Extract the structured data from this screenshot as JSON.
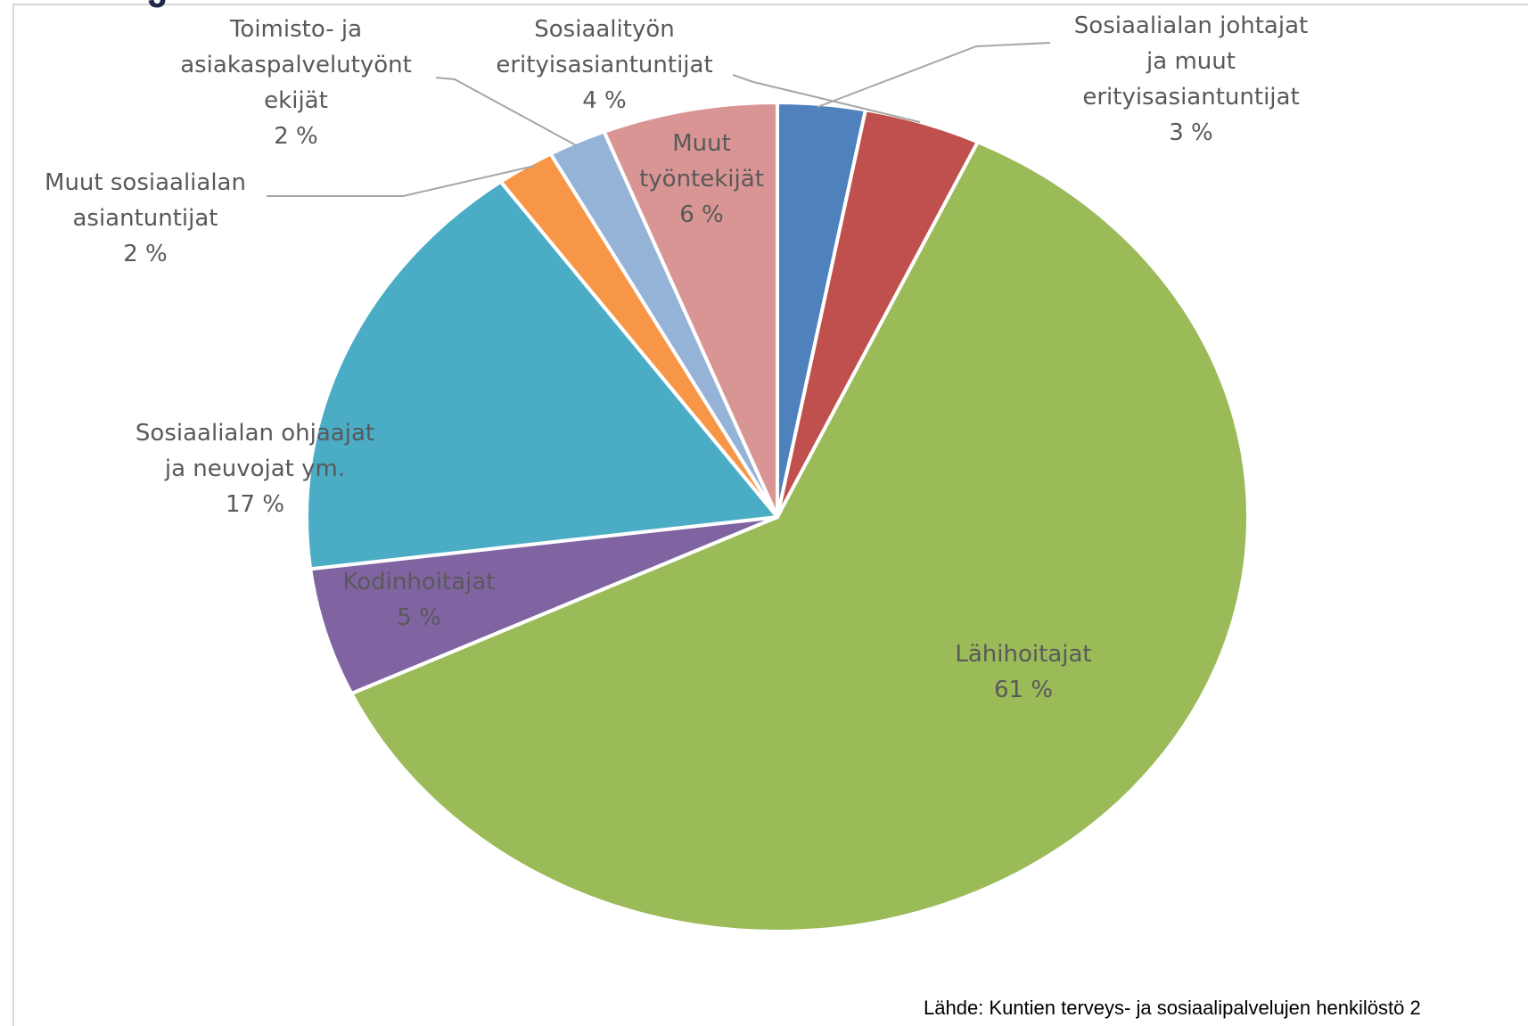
{
  "chart_data": {
    "type": "pie",
    "title": "",
    "start_angle_deg": 0,
    "direction": "clockwise",
    "slices": [
      {
        "label": "Sosiaalialan johtajat ja muut erityisasiantuntijat",
        "label_lines": [
          "Sosiaalialan johtajat",
          "ja muut",
          "erityisasiantuntijat",
          "3 %"
        ],
        "value": 3,
        "percent_text": "3 %",
        "color": "#4f81bd"
      },
      {
        "label": "Sosiaalityön erityisasiantuntijat",
        "label_lines": [
          "Sosiaalityön",
          "erityisasiantuntijat",
          "4 %"
        ],
        "value": 4,
        "percent_text": "4 %",
        "color": "#c0504d"
      },
      {
        "label": "Lähihoitajat",
        "label_lines": [
          "Lähihoitajat",
          "61 %"
        ],
        "value": 61,
        "percent_text": "61 %",
        "color": "#9bbb59"
      },
      {
        "label": "Kodinhoitajat",
        "label_lines": [
          "Kodinhoitajat",
          "5 %"
        ],
        "value": 5,
        "percent_text": "5 %",
        "color": "#8064a2"
      },
      {
        "label": "Sosiaalialan ohjaajat ja neuvojat ym.",
        "label_lines": [
          "Sosiaalialan ohjaajat",
          "ja neuvojat ym.",
          "17 %"
        ],
        "value": 17,
        "percent_text": "17 %",
        "color": "#4bacc6"
      },
      {
        "label": "Muut sosiaalialan asiantuntijat",
        "label_lines": [
          "Muut sosiaalialan",
          "asiantuntijat",
          "2 %"
        ],
        "value": 2,
        "percent_text": "2 %",
        "color": "#f79646"
      },
      {
        "label": "Toimisto- ja asiakaspalvelutyöntekijät",
        "label_lines": [
          "Toimisto- ja",
          "asiakaspalvelutyönt",
          "ekijät",
          "2 %"
        ],
        "value": 2,
        "percent_text": "2 %",
        "color": "#95b3d7"
      },
      {
        "label": "Muut työntekijät",
        "label_lines": [
          "Muut",
          "työntekijät",
          "6 %"
        ],
        "value": 6,
        "percent_text": "6 %",
        "color": "#d99594"
      }
    ],
    "source": "Lähde: Kuntien terveys- ja sosiaalipalvelujen henkilöstö 2"
  }
}
